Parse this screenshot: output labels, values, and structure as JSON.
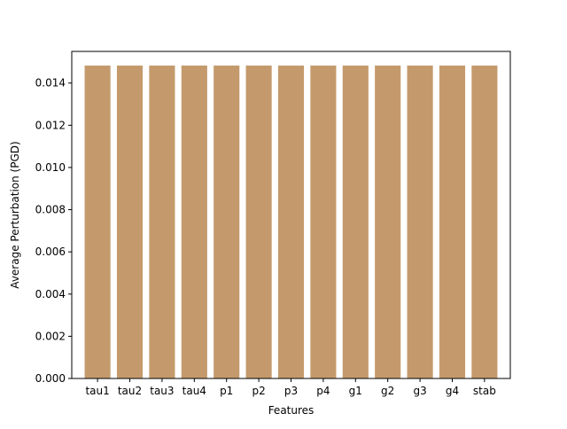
{
  "chart_data": {
    "type": "bar",
    "title": "",
    "xlabel": "Features",
    "ylabel": "Average Perturbation (PGD)",
    "categories": [
      "tau1",
      "tau2",
      "tau3",
      "tau4",
      "p1",
      "p2",
      "p3",
      "p4",
      "g1",
      "g2",
      "g3",
      "g4",
      "stab"
    ],
    "values": [
      0.01483,
      0.01483,
      0.01483,
      0.01483,
      0.01483,
      0.01483,
      0.01483,
      0.01483,
      0.01483,
      0.01483,
      0.01483,
      0.01483,
      0.01483
    ],
    "ylim": [
      0,
      0.0155
    ],
    "yticks": [
      0.0,
      0.002,
      0.004,
      0.006,
      0.008,
      0.01,
      0.012,
      0.014
    ],
    "ytick_labels": [
      "0.000",
      "0.002",
      "0.004",
      "0.006",
      "0.008",
      "0.010",
      "0.012",
      "0.014"
    ],
    "bar_color": "#c49a6c",
    "grid": false,
    "legend": "none"
  }
}
